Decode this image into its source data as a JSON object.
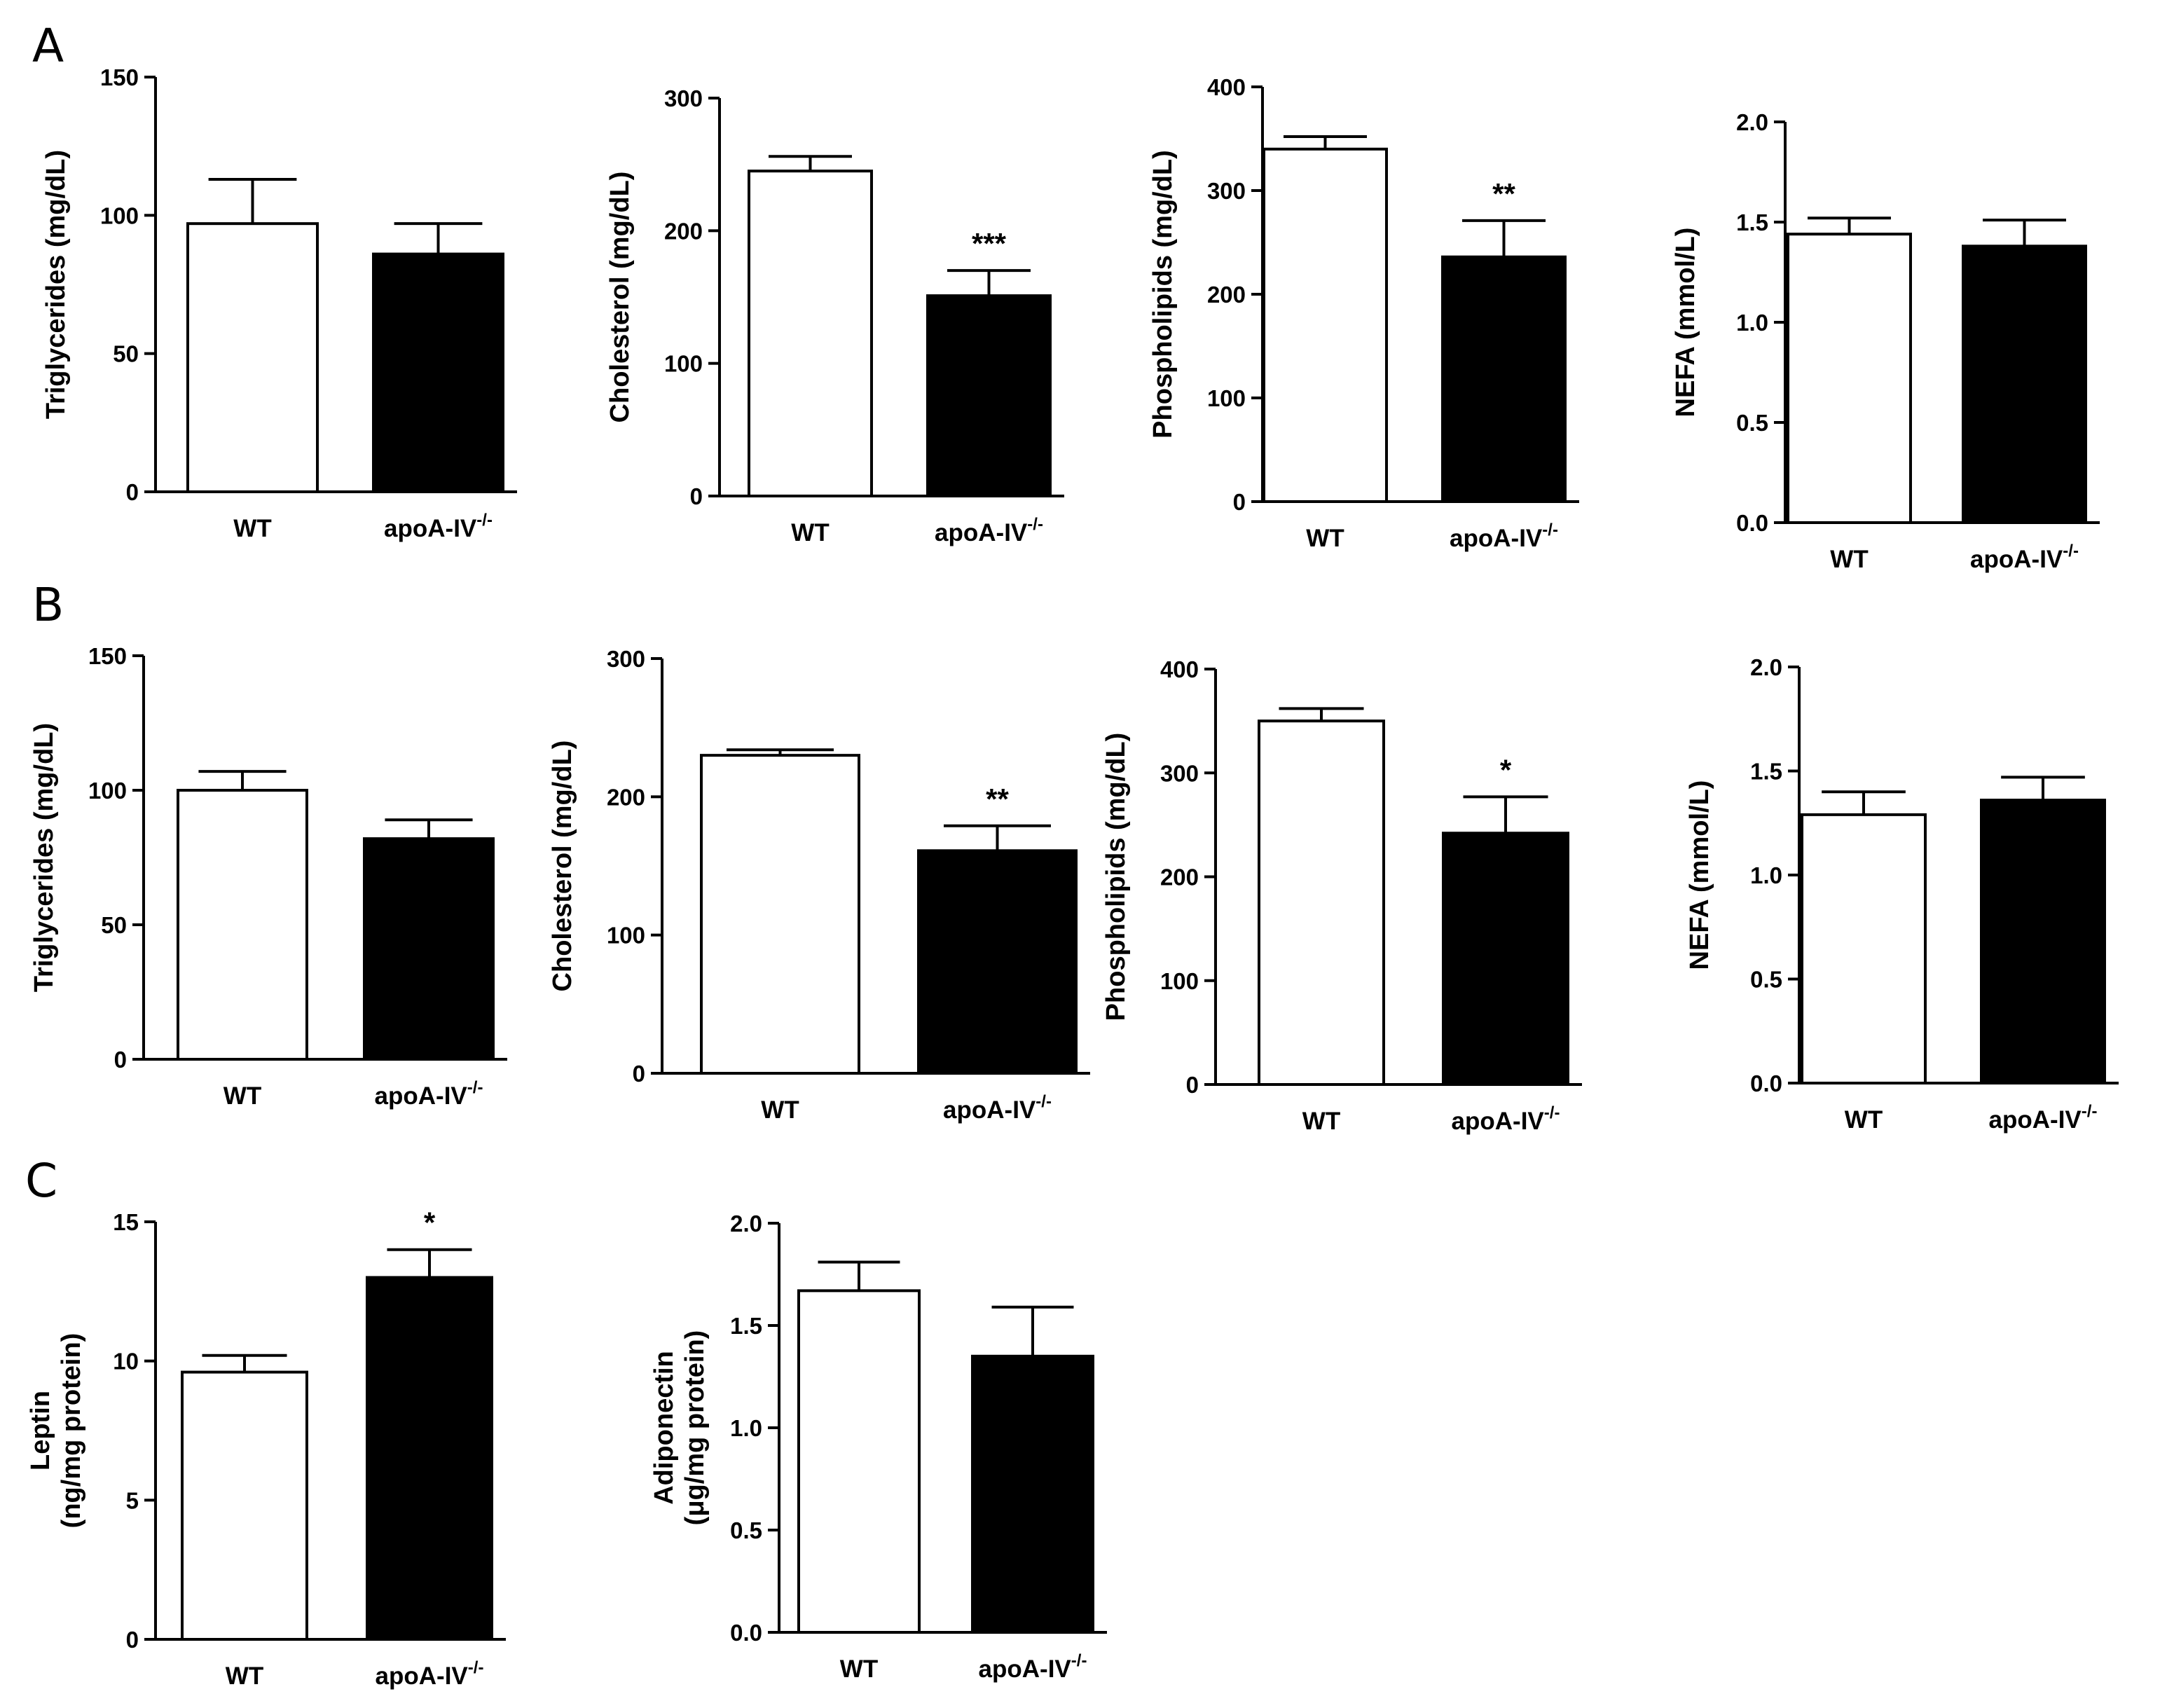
{
  "panel_letters": [
    "A",
    "B",
    "C"
  ],
  "colors": {
    "wt_fill": "#ffffff",
    "ko_fill": "#000000",
    "ink": "#000000"
  },
  "chart_data": [
    {
      "panel": "A",
      "type": "bar",
      "categories": [
        "WT",
        "apoA-IV"
      ],
      "superscript": "-/-",
      "ylabel": "Triglycerides (mg/dL)",
      "ylim": [
        0,
        150
      ],
      "yticks": [
        "0",
        "50",
        "100",
        "150"
      ],
      "values": [
        97,
        86
      ],
      "errors": [
        16,
        11
      ],
      "significance": [
        "",
        ""
      ]
    },
    {
      "panel": "A",
      "type": "bar",
      "categories": [
        "WT",
        "apoA-IV"
      ],
      "superscript": "-/-",
      "ylabel": "Cholesterol (mg/dL)",
      "ylim": [
        0,
        300
      ],
      "yticks": [
        "0",
        "100",
        "200",
        "300"
      ],
      "values": [
        245,
        151
      ],
      "errors": [
        11,
        19
      ],
      "significance": [
        "",
        "***"
      ]
    },
    {
      "panel": "A",
      "type": "bar",
      "categories": [
        "WT",
        "apoA-IV"
      ],
      "superscript": "-/-",
      "ylabel": "Phospholipids (mg/dL)",
      "ylim": [
        0,
        400
      ],
      "yticks": [
        "0",
        "100",
        "200",
        "300",
        "400"
      ],
      "values": [
        340,
        236
      ],
      "errors": [
        12,
        35
      ],
      "significance": [
        "",
        "**"
      ]
    },
    {
      "panel": "A",
      "type": "bar",
      "categories": [
        "WT",
        "apoA-IV"
      ],
      "superscript": "-/-",
      "ylabel": "NEFA (mmol/L)",
      "ylim": [
        0,
        2.0
      ],
      "yticks": [
        "0.0",
        "0.5",
        "1.0",
        "1.5",
        "2.0"
      ],
      "values": [
        1.44,
        1.38
      ],
      "errors": [
        0.08,
        0.13
      ],
      "significance": [
        "",
        ""
      ]
    },
    {
      "panel": "B",
      "type": "bar",
      "categories": [
        "WT",
        "apoA-IV"
      ],
      "superscript": "-/-",
      "ylabel": "Triglycerides (mg/dL)",
      "ylim": [
        0,
        150
      ],
      "yticks": [
        "0",
        "50",
        "100",
        "150"
      ],
      "values": [
        100,
        82
      ],
      "errors": [
        7,
        7
      ],
      "significance": [
        "",
        ""
      ]
    },
    {
      "panel": "B",
      "type": "bar",
      "categories": [
        "WT",
        "apoA-IV"
      ],
      "superscript": "-/-",
      "ylabel": "Cholesterol (mg/dL)",
      "ylim": [
        0,
        300
      ],
      "yticks": [
        "0",
        "100",
        "200",
        "300"
      ],
      "values": [
        230,
        161
      ],
      "errors": [
        4,
        18
      ],
      "significance": [
        "",
        "**"
      ]
    },
    {
      "panel": "B",
      "type": "bar",
      "categories": [
        "WT",
        "apoA-IV"
      ],
      "superscript": "-/-",
      "ylabel": "Phospholipids (mg/dL)",
      "ylim": [
        0,
        400
      ],
      "yticks": [
        "0",
        "100",
        "200",
        "300",
        "400"
      ],
      "values": [
        350,
        242
      ],
      "errors": [
        12,
        35
      ],
      "significance": [
        "",
        "*"
      ]
    },
    {
      "panel": "B",
      "type": "bar",
      "categories": [
        "WT",
        "apoA-IV"
      ],
      "superscript": "-/-",
      "ylabel": "NEFA (mmol/L)",
      "ylim": [
        0,
        2.0
      ],
      "yticks": [
        "0.0",
        "0.5",
        "1.0",
        "1.5",
        "2.0"
      ],
      "values": [
        1.29,
        1.36
      ],
      "errors": [
        0.11,
        0.11
      ],
      "significance": [
        "",
        ""
      ]
    },
    {
      "panel": "C",
      "type": "bar",
      "categories": [
        "WT",
        "apoA-IV"
      ],
      "superscript": "-/-",
      "ylabel": [
        "Leptin",
        "(ng/mg protein)"
      ],
      "ylim": [
        0,
        15
      ],
      "yticks": [
        "0",
        "5",
        "10",
        "15"
      ],
      "values": [
        9.6,
        13.0
      ],
      "errors": [
        0.6,
        1.0
      ],
      "significance": [
        "",
        "*"
      ]
    },
    {
      "panel": "C",
      "type": "bar",
      "categories": [
        "WT",
        "apoA-IV"
      ],
      "superscript": "-/-",
      "ylabel": [
        "Adiponectin",
        "(μg/mg protein)"
      ],
      "ylim": [
        0,
        2.0
      ],
      "yticks": [
        "0.0",
        "0.5",
        "1.0",
        "1.5",
        "2.0"
      ],
      "values": [
        1.67,
        1.35
      ],
      "errors": [
        0.14,
        0.24
      ],
      "significance": [
        "",
        ""
      ]
    }
  ]
}
